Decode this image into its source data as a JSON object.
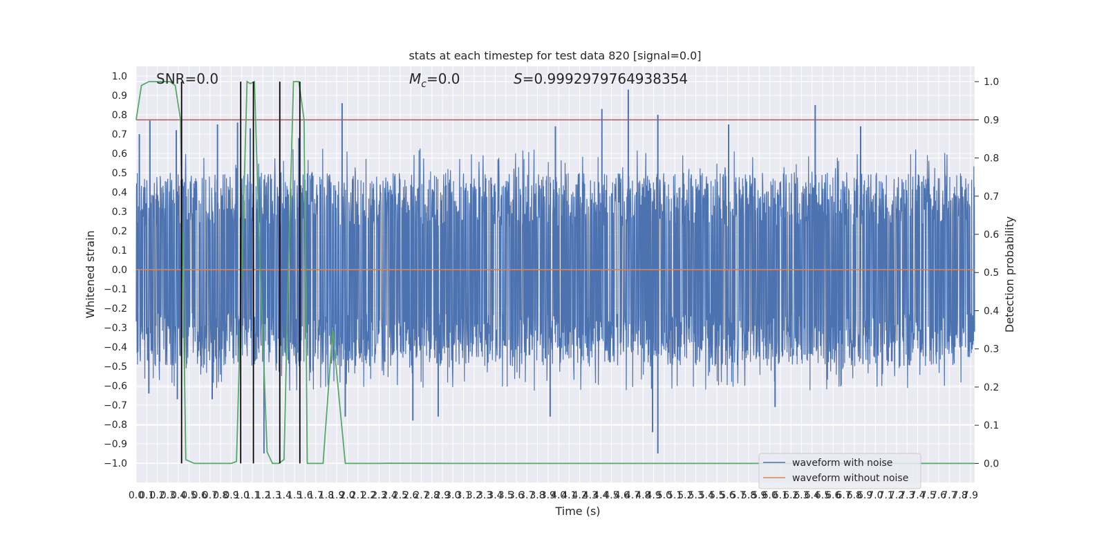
{
  "chart_data": {
    "type": "line",
    "title": "stats at each timestep for test data 820 [signal=0.0]",
    "xlabel": "Time (s)",
    "ylabel": "Whitened strain",
    "ylabel_right": "Detection probability",
    "xlim": [
      0.0,
      7.94
    ],
    "ylim": [
      -1.1,
      1.05
    ],
    "ylim_right": [
      -0.05,
      1.04
    ],
    "x_ticks": [
      "0.0",
      "0.1",
      "0.2",
      "0.3",
      "0.4",
      "0.5",
      "0.6",
      "0.7",
      "0.8",
      "0.9",
      "1.0",
      "1.1",
      "1.2",
      "1.3",
      "1.4",
      "1.5",
      "1.6",
      "1.7",
      "1.8",
      "1.9",
      "2.0",
      "2.1",
      "2.2",
      "2.3",
      "2.4",
      "2.5",
      "2.6",
      "2.7",
      "2.8",
      "2.9",
      "3.0",
      "3.1",
      "3.2",
      "3.3",
      "3.4",
      "3.5",
      "3.6",
      "3.7",
      "3.8",
      "3.9",
      "4.0",
      "4.1",
      "4.2",
      "4.3",
      "4.4",
      "4.5",
      "4.6",
      "4.7",
      "4.8",
      "4.9",
      "5.0",
      "5.1",
      "5.2",
      "5.3",
      "5.4",
      "5.5",
      "5.6",
      "5.7",
      "5.8",
      "5.9",
      "6.0",
      "6.1",
      "6.2",
      "6.3",
      "6.4",
      "6.5",
      "6.6",
      "6.7",
      "6.8",
      "6.9",
      "7.0",
      "7.1",
      "7.2",
      "7.3",
      "7.4",
      "7.5",
      "7.6",
      "7.7",
      "7.8",
      "7.9"
    ],
    "y_ticks": [
      "1.0",
      "0.9",
      "0.8",
      "0.7",
      "0.6",
      "0.5",
      "0.4",
      "0.3",
      "0.2",
      "0.1",
      "0.0",
      "−0.1",
      "−0.2",
      "−0.3",
      "−0.4",
      "−0.5",
      "−0.6",
      "−0.7",
      "−0.8",
      "−0.9",
      "−1.0"
    ],
    "y_ticks_right": [
      "1.0",
      "0.9",
      "0.8",
      "0.7",
      "0.6",
      "0.5",
      "0.4",
      "0.3",
      "0.2",
      "0.1",
      "0.0"
    ],
    "annotations": {
      "snr": "SNR=0.0",
      "mc_symbol": "M",
      "mc_subscript": "c",
      "mc_value": "=0.0",
      "s_symbol": "S",
      "s_value": "=0.9992979764938354"
    },
    "series": [
      {
        "name": "waveform with noise",
        "color": "#4c72b0",
        "envelope_peaks": [
          {
            "x": 0.03,
            "y": 0.7
          },
          {
            "x": 0.13,
            "y": 0.77
          },
          {
            "x": 0.38,
            "y": 0.72
          },
          {
            "x": 0.77,
            "y": 0.75
          },
          {
            "x": 0.96,
            "y": 0.76
          },
          {
            "x": 1.08,
            "y": 0.73
          },
          {
            "x": 1.54,
            "y": 0.68
          },
          {
            "x": 1.95,
            "y": 0.86
          },
          {
            "x": 3.97,
            "y": 0.74
          },
          {
            "x": 4.41,
            "y": 0.83
          },
          {
            "x": 4.66,
            "y": 0.93
          },
          {
            "x": 4.94,
            "y": 0.8
          },
          {
            "x": 5.61,
            "y": 0.75
          },
          {
            "x": 6.43,
            "y": 0.85
          },
          {
            "x": 6.86,
            "y": 0.74
          }
        ],
        "envelope_troughs": [
          {
            "x": 0.12,
            "y": -0.64
          },
          {
            "x": 0.39,
            "y": -0.67
          },
          {
            "x": 0.72,
            "y": -0.67
          },
          {
            "x": 1.21,
            "y": -0.95
          },
          {
            "x": 1.98,
            "y": -0.76
          },
          {
            "x": 2.62,
            "y": -0.78
          },
          {
            "x": 2.86,
            "y": -0.76
          },
          {
            "x": 3.92,
            "y": -0.76
          },
          {
            "x": 4.89,
            "y": -0.84
          },
          {
            "x": 4.94,
            "y": -0.95
          },
          {
            "x": 6.05,
            "y": -0.71
          }
        ],
        "typical_range": [
          -0.5,
          0.5
        ]
      },
      {
        "name": "waveform without noise",
        "color": "#dd8452",
        "x": [
          0.0,
          7.94
        ],
        "y": [
          0.0,
          0.0
        ]
      },
      {
        "name": "detection probability",
        "color": "#55a868",
        "axis": "right",
        "x": [
          0.0,
          0.05,
          0.12,
          0.22,
          0.32,
          0.37,
          0.42,
          0.47,
          0.55,
          0.62,
          0.72,
          0.9,
          0.95,
          1.0,
          1.05,
          1.08,
          1.12,
          1.17,
          1.24,
          1.29,
          1.35,
          1.4,
          1.44,
          1.49,
          1.54,
          1.59,
          1.62,
          1.7,
          1.77,
          1.86,
          1.98,
          2.1,
          2.3,
          2.4,
          3.0,
          4.0,
          5.0,
          6.0,
          7.0,
          7.94
        ],
        "y": [
          0.9,
          0.99,
          1.0,
          1.0,
          1.0,
          0.99,
          0.9,
          0.01,
          0.0,
          0.0,
          0.0,
          0.0,
          0.005,
          0.5,
          1.0,
          0.995,
          1.0,
          0.55,
          0.03,
          0.0,
          0.0,
          0.01,
          0.5,
          1.0,
          1.0,
          0.9,
          0.0,
          0.0,
          0.0,
          0.35,
          0.0,
          0.0,
          0.0,
          0.0005,
          0.0,
          0.0,
          0.0,
          0.0,
          0.0,
          0.0
        ]
      }
    ],
    "threshold_line": {
      "axis": "right",
      "y": 0.9,
      "color": "#c44e52"
    },
    "event_markers": {
      "x": [
        0.43,
        0.99,
        1.11,
        1.36,
        1.55
      ],
      "ymin": 0.0,
      "ymax": 1.0,
      "color": "#000000"
    },
    "legend": {
      "placement": "lower-right",
      "entries": [
        "waveform with noise",
        "waveform without noise"
      ]
    },
    "grid": true,
    "colors": {
      "axes_bg": "#eaeaf2",
      "grid": "#ffffff"
    }
  }
}
